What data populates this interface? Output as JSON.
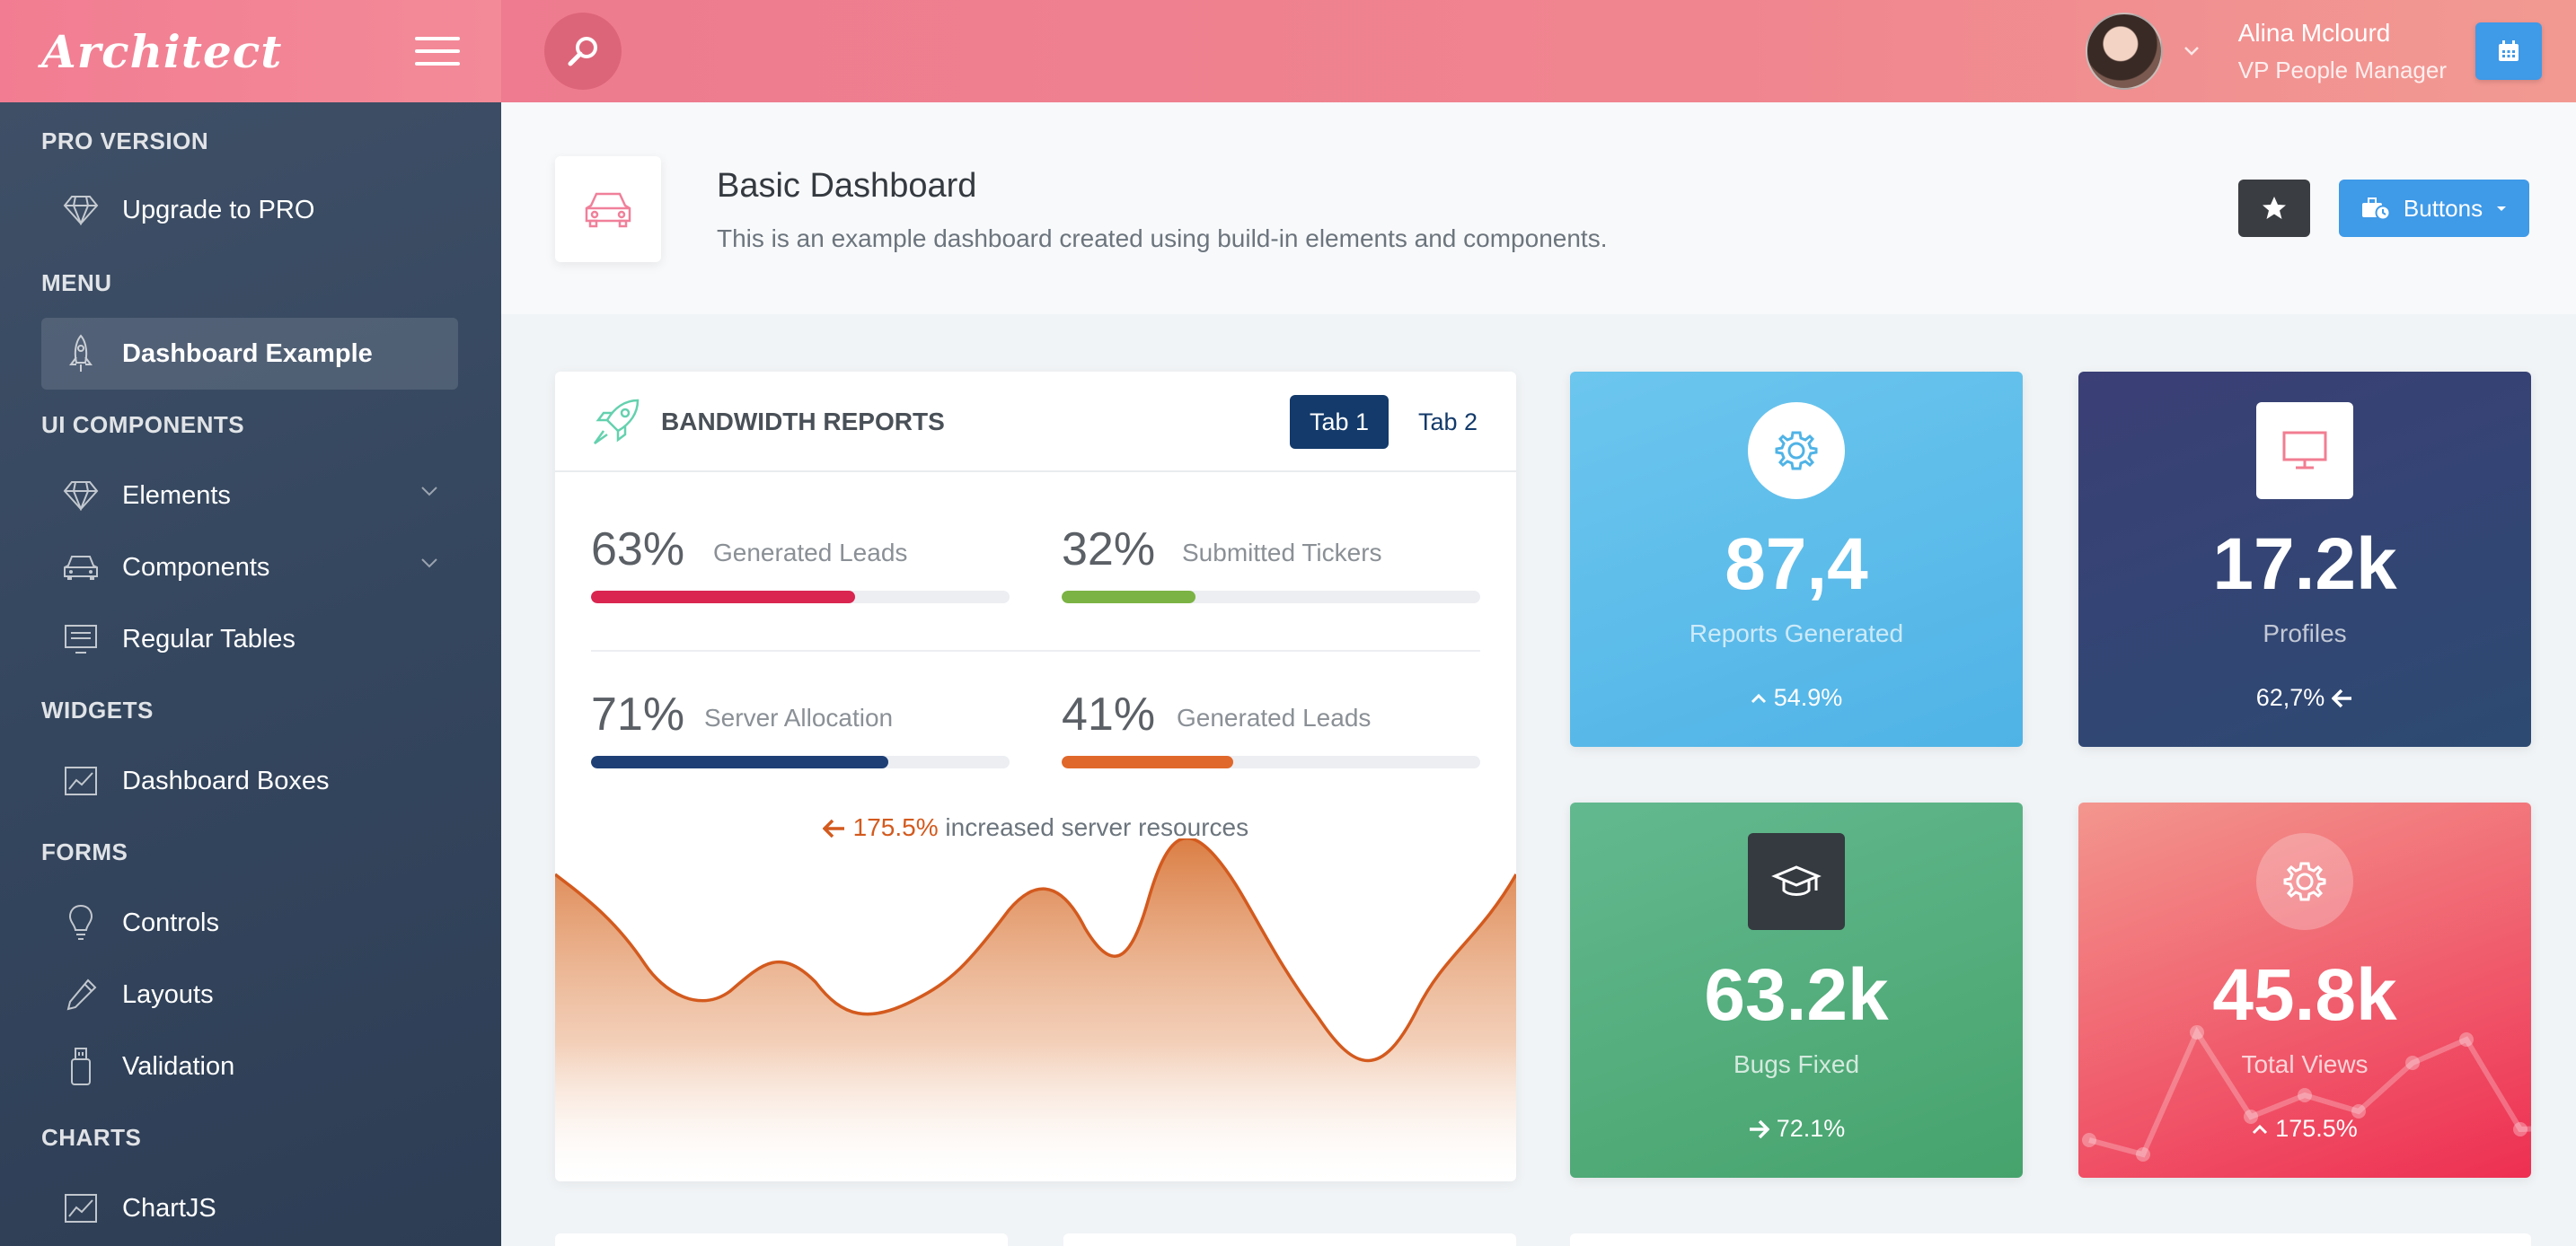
{
  "app": {
    "logo": "Architect"
  },
  "header": {
    "user": {
      "name": "Alina Mclourd",
      "role": "VP People Manager"
    },
    "icons": {
      "search": "search-icon",
      "calendar": "calendar-icon",
      "menu": "hamburger-icon"
    }
  },
  "sidebar": {
    "sections": [
      {
        "heading": "PRO VERSION",
        "items": [
          {
            "label": "Upgrade to PRO",
            "icon": "diamond-icon"
          }
        ]
      },
      {
        "heading": "MENU",
        "items": [
          {
            "label": "Dashboard Example",
            "icon": "rocket-icon",
            "active": true
          }
        ]
      },
      {
        "heading": "UI COMPONENTS",
        "items": [
          {
            "label": "Elements",
            "icon": "diamond-icon",
            "expandable": true
          },
          {
            "label": "Components",
            "icon": "car-icon",
            "expandable": true
          },
          {
            "label": "Regular Tables",
            "icon": "monitor-icon"
          }
        ]
      },
      {
        "heading": "WIDGETS",
        "items": [
          {
            "label": "Dashboard Boxes",
            "icon": "chart-icon"
          }
        ]
      },
      {
        "heading": "FORMS",
        "items": [
          {
            "label": "Controls",
            "icon": "lightbulb-icon"
          },
          {
            "label": "Layouts",
            "icon": "eyedropper-icon"
          },
          {
            "label": "Validation",
            "icon": "usb-icon"
          }
        ]
      },
      {
        "heading": "CHARTS",
        "items": [
          {
            "label": "ChartJS",
            "icon": "chart-icon"
          }
        ]
      }
    ]
  },
  "page": {
    "title": "Basic Dashboard",
    "subtitle": "This is an example dashboard created using build-in elements and components.",
    "actions": {
      "buttons_label": "Buttons"
    }
  },
  "bandwidth": {
    "title": "BANDWIDTH REPORTS",
    "tabs": [
      "Tab 1",
      "Tab 2"
    ],
    "active_tab": 0,
    "metrics": [
      {
        "pct": "63%",
        "label": "Generated Leads",
        "value": 63,
        "color": "#d92550"
      },
      {
        "pct": "32%",
        "label": "Submitted Tickers",
        "value": 32,
        "color": "#7bb344"
      },
      {
        "pct": "71%",
        "label": "Server Allocation",
        "value": 71,
        "color": "#1e3f76"
      },
      {
        "pct": "41%",
        "label": "Generated Leads",
        "value": 41,
        "color": "#e0682a"
      }
    ],
    "increase": {
      "value": "175.5%",
      "text": "increased server resources"
    }
  },
  "tiles": [
    {
      "value": "87,4",
      "label": "Reports Generated",
      "change": "54.9%",
      "direction": "up",
      "icon": "gear-icon",
      "gradient": [
        "#6cc6ee",
        "#4fb3e6"
      ]
    },
    {
      "value": "17.2k",
      "label": "Profiles",
      "change": "62,7%",
      "direction": "left",
      "icon": "monitor-icon",
      "gradient": [
        "#3b3f75",
        "#2c4a72"
      ]
    },
    {
      "value": "63.2k",
      "label": "Bugs Fixed",
      "change": "72.1%",
      "direction": "right",
      "icon": "graduation-cap-icon",
      "gradient": [
        "#63b98f",
        "#46a36c"
      ]
    },
    {
      "value": "45.8k",
      "label": "Total Views",
      "change": "175.5%",
      "direction": "up",
      "icon": "gear-icon",
      "gradient": [
        "#f3968e",
        "#ee2f52"
      ]
    }
  ],
  "colors": {
    "accent": "#f27d92",
    "primary": "#3f9ae8",
    "dark_blue": "#133a6a",
    "chart_orange": "#d35a1e"
  }
}
